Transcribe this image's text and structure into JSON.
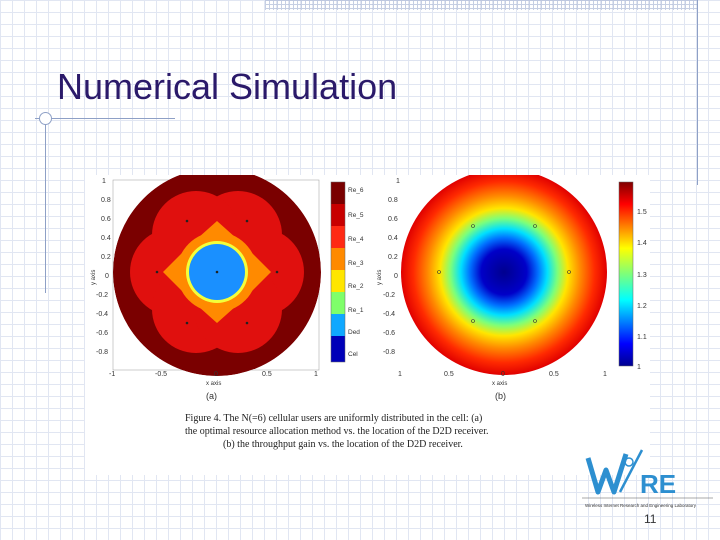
{
  "slide": {
    "title": "Numerical Simulation",
    "page_number": "11"
  },
  "figure": {
    "label_a": "(a)",
    "label_b": "(b)",
    "caption_lines": [
      "Figure 4.    The N(=6) cellular users are uniformly distributed in the cell: (a)",
      "the optimal resource allocation method vs. the location of the D2D receiver.",
      "(b) the throughput gain vs. the location of the D2D receiver."
    ]
  },
  "chart_data": [
    {
      "type": "heatmap",
      "title": "",
      "xlabel": "x axis",
      "ylabel": "y axis",
      "xlim": [
        -1,
        1
      ],
      "ylim": [
        -1,
        1
      ],
      "x_ticks": [
        "-1",
        "-0.5",
        "0",
        "0.5",
        "1"
      ],
      "y_ticks": [
        "1",
        "0.8",
        "0.6",
        "0.4",
        "0.2",
        "0",
        "-0.2",
        "-0.4",
        "-0.6",
        "-0.8"
      ],
      "colorbar_labels": [
        "Re_6",
        "Re_5",
        "Re_4",
        "Re_3",
        "Re_2",
        "Re_1",
        "Ded",
        "Cel"
      ],
      "colors": {
        "Re_6": "#7a0000",
        "Re_5": "#c80000",
        "Re_4": "#ff2a14",
        "Re_3": "#ff8a00",
        "Re_2": "#ffe600",
        "Re_1": "#7fff6a",
        "Ded": "#10a8ff",
        "Cel": "#0000b8"
      },
      "users": [
        [
          0.6,
          0.0
        ],
        [
          0.3,
          0.52
        ],
        [
          -0.3,
          0.52
        ],
        [
          -0.6,
          0.0
        ],
        [
          -0.3,
          -0.52
        ],
        [
          0.3,
          -0.52
        ]
      ]
    },
    {
      "type": "heatmap",
      "title": "",
      "xlabel": "x axis",
      "ylabel": "y axis",
      "xlim": [
        -1,
        1
      ],
      "ylim": [
        -1,
        1
      ],
      "x_ticks": [
        "1",
        "0.5",
        "0",
        "0.5",
        "1"
      ],
      "y_ticks": [
        "1",
        "0.8",
        "0.6",
        "0.4",
        "0.2",
        "0",
        "-0.2",
        "-0.4",
        "-0.6",
        "-0.8"
      ],
      "colorbar_ticks": [
        "1.5",
        "1.4",
        "1.3",
        "1.2",
        "1.1",
        "1"
      ],
      "colormap": "jet",
      "users": [
        [
          0.6,
          0.0
        ],
        [
          0.3,
          0.52
        ],
        [
          -0.3,
          0.52
        ],
        [
          -0.6,
          0.0
        ],
        [
          -0.3,
          -0.52
        ],
        [
          0.3,
          -0.52
        ]
      ]
    }
  ],
  "logo": {
    "word": "WiRE",
    "tagline": "Wireless Internet Research and Engineering Laboratory"
  }
}
